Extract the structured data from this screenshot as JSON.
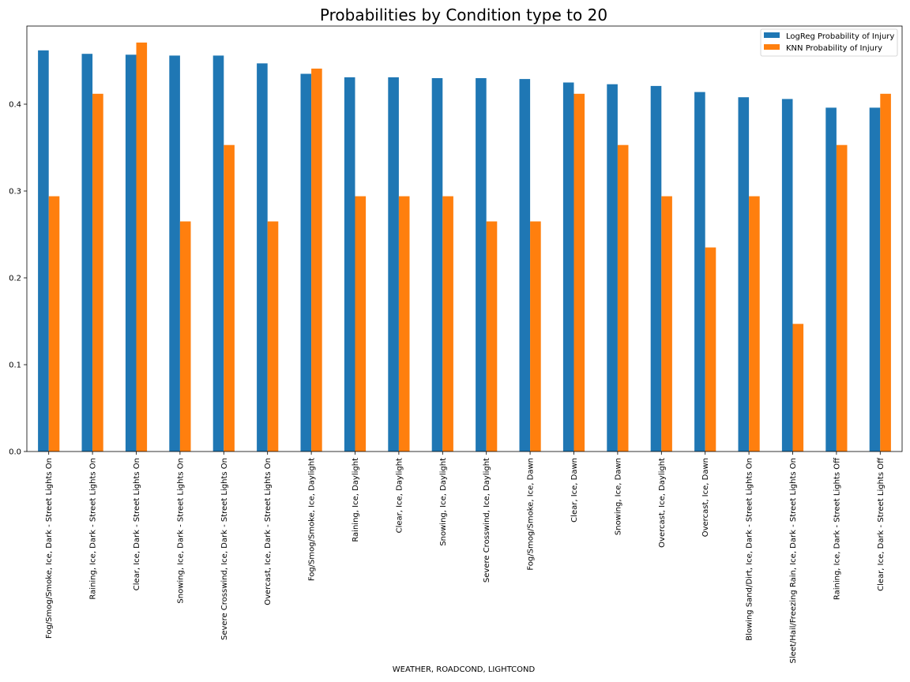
{
  "chart_data": {
    "type": "bar",
    "title": "Probabilities by Condition type to 20",
    "xlabel": "WEATHER, ROADCOND, LIGHTCOND",
    "ylabel": "",
    "ylim": [
      0,
      0.49
    ],
    "yticks": [
      "0.0",
      "0.1",
      "0.2",
      "0.3",
      "0.4"
    ],
    "grid": false,
    "legend_position": "top-right",
    "categories": [
      "Fog/Smog/Smoke, Ice, Dark - Street Lights On",
      "Raining, Ice, Dark - Street Lights On",
      "Clear, Ice, Dark - Street Lights On",
      "Snowing, Ice, Dark - Street Lights On",
      "Severe Crosswind, Ice, Dark - Street Lights On",
      "Overcast, Ice, Dark - Street Lights On",
      "Fog/Smog/Smoke, Ice, Daylight",
      "Raining, Ice, Daylight",
      "Clear, Ice, Daylight",
      "Snowing, Ice, Daylight",
      "Severe Crosswind, Ice, Daylight",
      "Fog/Smog/Smoke, Ice, Dawn",
      "Clear, Ice, Dawn",
      "Snowing, Ice, Dawn",
      "Overcast, Ice, Daylight",
      "Overcast, Ice, Dawn",
      "Blowing Sand/Dirt, Ice, Dark - Street Lights On",
      "Sleet/Hail/Freezing Rain, Ice, Dark - Street Lights On",
      "Raining, Ice, Dark - Street Lights Off",
      "Clear, Ice, Dark - Street Lights Off"
    ],
    "series": [
      {
        "name": "LogReg Probability of Injury",
        "color": "#1f77b4",
        "values": [
          0.462,
          0.458,
          0.457,
          0.456,
          0.456,
          0.447,
          0.435,
          0.431,
          0.431,
          0.43,
          0.43,
          0.429,
          0.425,
          0.423,
          0.421,
          0.414,
          0.408,
          0.406,
          0.396,
          0.396
        ]
      },
      {
        "name": "KNN Probability of Injury",
        "color": "#ff7f0e",
        "values": [
          0.294,
          0.412,
          0.471,
          0.265,
          0.353,
          0.265,
          0.441,
          0.294,
          0.294,
          0.294,
          0.265,
          0.265,
          0.412,
          0.353,
          0.294,
          0.235,
          0.294,
          0.147,
          0.353,
          0.412
        ]
      }
    ]
  }
}
